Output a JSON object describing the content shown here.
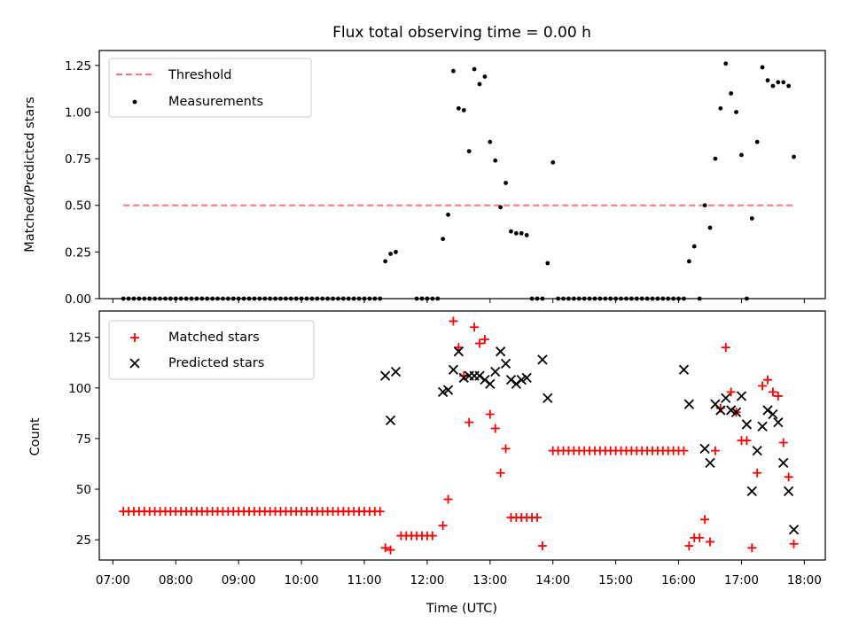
{
  "figure": {
    "title": "Flux total observing time = 0.00 h",
    "xlabel": "Time (UTC)"
  },
  "chart_data": [
    {
      "type": "scatter",
      "panel": "top",
      "ylabel": "Matched/Predicted stars",
      "xlim": [
        "06:47",
        "18:20"
      ],
      "ylim": [
        0,
        1.33
      ],
      "yticks": [
        0.0,
        0.25,
        0.5,
        0.75,
        1.0,
        1.25
      ],
      "ytick_labels": [
        "0.00",
        "0.25",
        "0.50",
        "0.75",
        "1.00",
        "1.25"
      ],
      "legend_placement": "top-left",
      "threshold": {
        "name": "Threshold",
        "value": 0.5,
        "x_start": "07:10",
        "x_end": "17:50",
        "color": "#ff7777"
      },
      "series": [
        {
          "name": "Measurements",
          "color": "#000000",
          "marker": "dot",
          "groups": [
            {
              "from": "07:10",
              "to": "11:15",
              "every_min": 5,
              "value": 0.0
            },
            {
              "from": "11:50",
              "to": "12:10",
              "every_min": 5,
              "value": 0.0
            },
            {
              "from": "13:40",
              "to": "13:50",
              "every_min": 5,
              "value": 0.0
            },
            {
              "from": "14:05",
              "to": "16:05",
              "every_min": 5,
              "value": 0.0
            }
          ],
          "points": [
            {
              "t": "11:20",
              "v": 0.2
            },
            {
              "t": "11:25",
              "v": 0.24
            },
            {
              "t": "11:30",
              "v": 0.25
            },
            {
              "t": "12:15",
              "v": 0.32
            },
            {
              "t": "12:20",
              "v": 0.45
            },
            {
              "t": "12:25",
              "v": 1.22
            },
            {
              "t": "12:30",
              "v": 1.02
            },
            {
              "t": "12:35",
              "v": 1.01
            },
            {
              "t": "12:40",
              "v": 0.79
            },
            {
              "t": "12:45",
              "v": 1.23
            },
            {
              "t": "12:50",
              "v": 1.15
            },
            {
              "t": "12:55",
              "v": 1.19
            },
            {
              "t": "13:00",
              "v": 0.84
            },
            {
              "t": "13:05",
              "v": 0.74
            },
            {
              "t": "13:10",
              "v": 0.49
            },
            {
              "t": "13:15",
              "v": 0.62
            },
            {
              "t": "13:20",
              "v": 0.36
            },
            {
              "t": "13:25",
              "v": 0.35
            },
            {
              "t": "13:30",
              "v": 0.35
            },
            {
              "t": "13:35",
              "v": 0.34
            },
            {
              "t": "13:55",
              "v": 0.19
            },
            {
              "t": "14:00",
              "v": 0.73
            },
            {
              "t": "16:10",
              "v": 0.2
            },
            {
              "t": "16:15",
              "v": 0.28
            },
            {
              "t": "16:20",
              "v": 0.0
            },
            {
              "t": "16:25",
              "v": 0.5
            },
            {
              "t": "16:30",
              "v": 0.38
            },
            {
              "t": "16:35",
              "v": 0.75
            },
            {
              "t": "16:40",
              "v": 1.02
            },
            {
              "t": "16:45",
              "v": 1.26
            },
            {
              "t": "16:50",
              "v": 1.1
            },
            {
              "t": "16:55",
              "v": 1.0
            },
            {
              "t": "17:00",
              "v": 0.77
            },
            {
              "t": "17:05",
              "v": 0.0
            },
            {
              "t": "17:10",
              "v": 0.43
            },
            {
              "t": "17:15",
              "v": 0.84
            },
            {
              "t": "17:20",
              "v": 1.24
            },
            {
              "t": "17:25",
              "v": 1.17
            },
            {
              "t": "17:30",
              "v": 1.14
            },
            {
              "t": "17:35",
              "v": 1.16
            },
            {
              "t": "17:40",
              "v": 1.16
            },
            {
              "t": "17:45",
              "v": 1.14
            },
            {
              "t": "17:50",
              "v": 0.76
            }
          ]
        }
      ]
    },
    {
      "type": "scatter",
      "panel": "bottom",
      "ylabel": "Count",
      "xlim": [
        "06:47",
        "18:20"
      ],
      "ylim": [
        15,
        138
      ],
      "yticks": [
        25,
        50,
        75,
        100,
        125
      ],
      "xticks": [
        "07:00",
        "08:00",
        "09:00",
        "10:00",
        "11:00",
        "12:00",
        "13:00",
        "14:00",
        "15:00",
        "16:00",
        "17:00",
        "18:00"
      ],
      "legend_placement": "top-left",
      "series": [
        {
          "name": "Matched stars",
          "color": "#ff0000",
          "marker": "plus",
          "groups": [
            {
              "from": "07:10",
              "to": "11:15",
              "every_min": 5,
              "value": 39
            },
            {
              "from": "11:35",
              "to": "12:05",
              "every_min": 5,
              "value": 27
            },
            {
              "from": "13:20",
              "to": "13:45",
              "every_min": 5,
              "value": 36
            },
            {
              "from": "14:00",
              "to": "16:05",
              "every_min": 5,
              "value": 69
            }
          ],
          "points": [
            {
              "t": "11:20",
              "v": 21
            },
            {
              "t": "11:25",
              "v": 20
            },
            {
              "t": "12:15",
              "v": 32
            },
            {
              "t": "12:20",
              "v": 45
            },
            {
              "t": "12:25",
              "v": 133
            },
            {
              "t": "12:30",
              "v": 120
            },
            {
              "t": "12:35",
              "v": 106
            },
            {
              "t": "12:40",
              "v": 83
            },
            {
              "t": "12:45",
              "v": 130
            },
            {
              "t": "12:50",
              "v": 122
            },
            {
              "t": "12:55",
              "v": 124
            },
            {
              "t": "13:00",
              "v": 87
            },
            {
              "t": "13:05",
              "v": 80
            },
            {
              "t": "13:10",
              "v": 58
            },
            {
              "t": "13:15",
              "v": 70
            },
            {
              "t": "13:50",
              "v": 22
            },
            {
              "t": "16:10",
              "v": 22
            },
            {
              "t": "16:15",
              "v": 26
            },
            {
              "t": "16:20",
              "v": 26
            },
            {
              "t": "16:25",
              "v": 35
            },
            {
              "t": "16:30",
              "v": 24
            },
            {
              "t": "16:35",
              "v": 69
            },
            {
              "t": "16:40",
              "v": 90
            },
            {
              "t": "16:45",
              "v": 120
            },
            {
              "t": "16:50",
              "v": 98
            },
            {
              "t": "16:55",
              "v": 88
            },
            {
              "t": "17:00",
              "v": 74
            },
            {
              "t": "17:05",
              "v": 74
            },
            {
              "t": "17:10",
              "v": 21
            },
            {
              "t": "17:15",
              "v": 58
            },
            {
              "t": "17:20",
              "v": 101
            },
            {
              "t": "17:25",
              "v": 104
            },
            {
              "t": "17:30",
              "v": 98
            },
            {
              "t": "17:35",
              "v": 96
            },
            {
              "t": "17:40",
              "v": 73
            },
            {
              "t": "17:45",
              "v": 56
            },
            {
              "t": "17:50",
              "v": 23
            }
          ]
        },
        {
          "name": "Predicted stars",
          "color": "#000000",
          "marker": "cross",
          "points": [
            {
              "t": "11:20",
              "v": 106
            },
            {
              "t": "11:25",
              "v": 84
            },
            {
              "t": "11:30",
              "v": 108
            },
            {
              "t": "12:15",
              "v": 98
            },
            {
              "t": "12:20",
              "v": 99
            },
            {
              "t": "12:25",
              "v": 109
            },
            {
              "t": "12:30",
              "v": 118
            },
            {
              "t": "12:35",
              "v": 105
            },
            {
              "t": "12:40",
              "v": 106
            },
            {
              "t": "12:45",
              "v": 106
            },
            {
              "t": "12:50",
              "v": 106
            },
            {
              "t": "12:55",
              "v": 104
            },
            {
              "t": "13:00",
              "v": 102
            },
            {
              "t": "13:05",
              "v": 108
            },
            {
              "t": "13:10",
              "v": 118
            },
            {
              "t": "13:15",
              "v": 112
            },
            {
              "t": "13:20",
              "v": 104
            },
            {
              "t": "13:25",
              "v": 102
            },
            {
              "t": "13:30",
              "v": 104
            },
            {
              "t": "13:35",
              "v": 105
            },
            {
              "t": "13:50",
              "v": 114
            },
            {
              "t": "13:55",
              "v": 95
            },
            {
              "t": "16:05",
              "v": 109
            },
            {
              "t": "16:10",
              "v": 92
            },
            {
              "t": "16:25",
              "v": 70
            },
            {
              "t": "16:30",
              "v": 63
            },
            {
              "t": "16:35",
              "v": 92
            },
            {
              "t": "16:40",
              "v": 89
            },
            {
              "t": "16:45",
              "v": 95
            },
            {
              "t": "16:50",
              "v": 89
            },
            {
              "t": "16:55",
              "v": 88
            },
            {
              "t": "17:00",
              "v": 96
            },
            {
              "t": "17:05",
              "v": 82
            },
            {
              "t": "17:10",
              "v": 49
            },
            {
              "t": "17:15",
              "v": 69
            },
            {
              "t": "17:20",
              "v": 81
            },
            {
              "t": "17:25",
              "v": 89
            },
            {
              "t": "17:30",
              "v": 87
            },
            {
              "t": "17:35",
              "v": 83
            },
            {
              "t": "17:40",
              "v": 63
            },
            {
              "t": "17:45",
              "v": 49
            },
            {
              "t": "17:50",
              "v": 30
            }
          ]
        }
      ]
    }
  ]
}
